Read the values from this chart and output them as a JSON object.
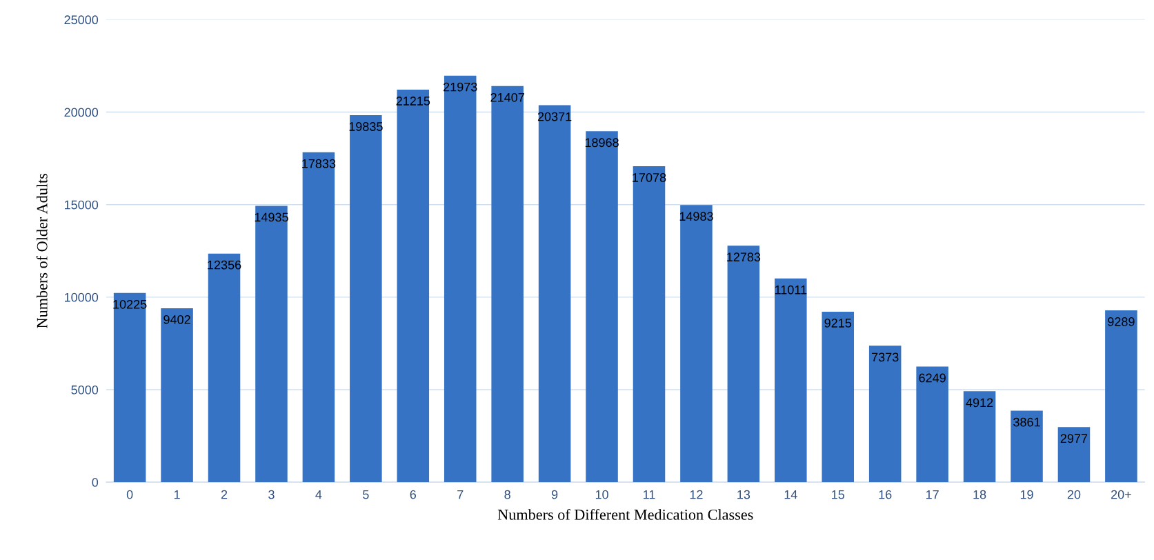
{
  "chart_data": {
    "type": "bar",
    "xlabel": "Numbers of Different Medication Classes",
    "ylabel": "Numbers of Older Adults",
    "categories": [
      "0",
      "1",
      "2",
      "3",
      "4",
      "5",
      "6",
      "7",
      "8",
      "9",
      "10",
      "11",
      "12",
      "13",
      "14",
      "15",
      "16",
      "17",
      "18",
      "19",
      "20",
      "20+"
    ],
    "values": [
      10225,
      9402,
      12356,
      14935,
      17833,
      19835,
      21215,
      21973,
      21407,
      20371,
      18968,
      17078,
      14983,
      12783,
      11011,
      9215,
      7373,
      6249,
      4912,
      3861,
      2977,
      9289
    ],
    "color": "#3673c4",
    "ylim": [
      0,
      25000
    ],
    "yticks": [
      0,
      5000,
      10000,
      15000,
      20000,
      25000
    ],
    "grid": "y",
    "data_labels": true
  }
}
